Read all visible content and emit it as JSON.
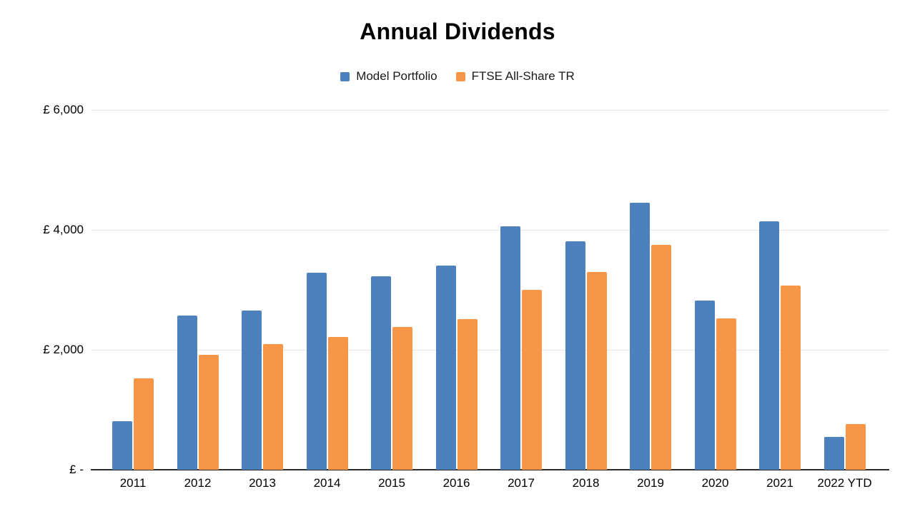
{
  "chart_data": {
    "type": "bar",
    "title": "Annual Dividends",
    "categories": [
      "2011",
      "2012",
      "2013",
      "2014",
      "2015",
      "2016",
      "2017",
      "2018",
      "2019",
      "2020",
      "2021",
      "2022 YTD"
    ],
    "series": [
      {
        "name": "Model Portfolio",
        "color": "#4d81bd",
        "values": [
          810,
          2570,
          2660,
          3290,
          3230,
          3400,
          4060,
          3810,
          4450,
          2820,
          4140,
          550
        ]
      },
      {
        "name": "FTSE All-Share TR",
        "color": "#f79646",
        "values": [
          1520,
          1920,
          2100,
          2210,
          2380,
          2510,
          3000,
          3300,
          3750,
          2520,
          3070,
          760
        ]
      }
    ],
    "xlabel": "",
    "ylabel": "",
    "ylim": [
      0,
      6000
    ],
    "yticks": [
      {
        "value": 0,
        "label": "£ -"
      },
      {
        "value": 2000,
        "label": "£ 2,000"
      },
      {
        "value": 4000,
        "label": "£ 4,000"
      },
      {
        "value": 6000,
        "label": "£ 6,000"
      }
    ],
    "grid": true,
    "legend_position": "top"
  },
  "colors": {
    "background": "#ffffff",
    "gridline": "#e6e6e6",
    "axis_line": "#2b2b2b",
    "text": "#000000",
    "series_blue": "#4d81bd",
    "series_orange": "#f79646"
  }
}
